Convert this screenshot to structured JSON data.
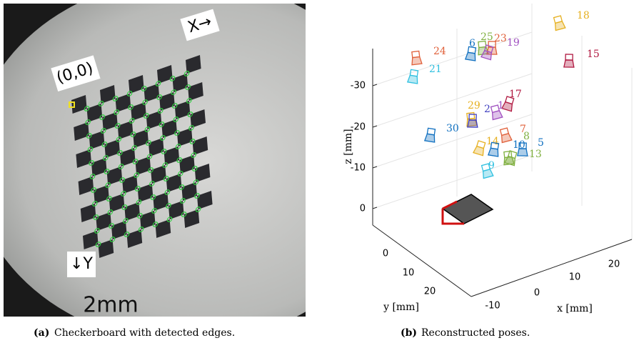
{
  "figure_a": {
    "labels": {
      "origin": "(0,0)",
      "x_axis": "X→",
      "y_axis": "↓Y",
      "scale": "2mm"
    },
    "caption_tag": "(a)",
    "caption": "Checkerboard with detected edges."
  },
  "figure_b": {
    "z_ticks": [
      -30,
      -20,
      -10,
      0
    ],
    "y_ticks": [
      0,
      10,
      20
    ],
    "x_ticks": [
      -10,
      0,
      10,
      20
    ],
    "z_label": "z [mm]",
    "y_label": "y [mm]",
    "x_label": "x [mm]",
    "cameras": [
      {
        "label": "18",
        "color": "#e6b020"
      },
      {
        "label": "24",
        "color": "#e0603a"
      },
      {
        "label": "15",
        "color": "#b01840"
      },
      {
        "label": "21",
        "color": "#30c0e0"
      },
      {
        "label": "17",
        "color": "#b01840"
      },
      {
        "label": "1",
        "color": "#a050c0"
      },
      {
        "label": "29",
        "color": "#e6b020"
      },
      {
        "label": "2",
        "color": "#4040c0"
      },
      {
        "label": "30",
        "color": "#1070c0"
      },
      {
        "label": "14",
        "color": "#e6b020"
      },
      {
        "label": "7",
        "color": "#e0603a"
      },
      {
        "label": "8",
        "color": "#80b040"
      },
      {
        "label": "5",
        "color": "#1070c0"
      },
      {
        "label": "10",
        "color": "#1070c0"
      },
      {
        "label": "13",
        "color": "#80b040"
      },
      {
        "label": "9",
        "color": "#30c0e0"
      },
      {
        "label": "25",
        "color": "#80b040"
      },
      {
        "label": "23",
        "color": "#e0603a"
      },
      {
        "label": "6",
        "color": "#1070c0"
      },
      {
        "label": "19",
        "color": "#a050c0"
      }
    ],
    "caption_tag": "(b)",
    "caption": "Reconstructed poses."
  }
}
